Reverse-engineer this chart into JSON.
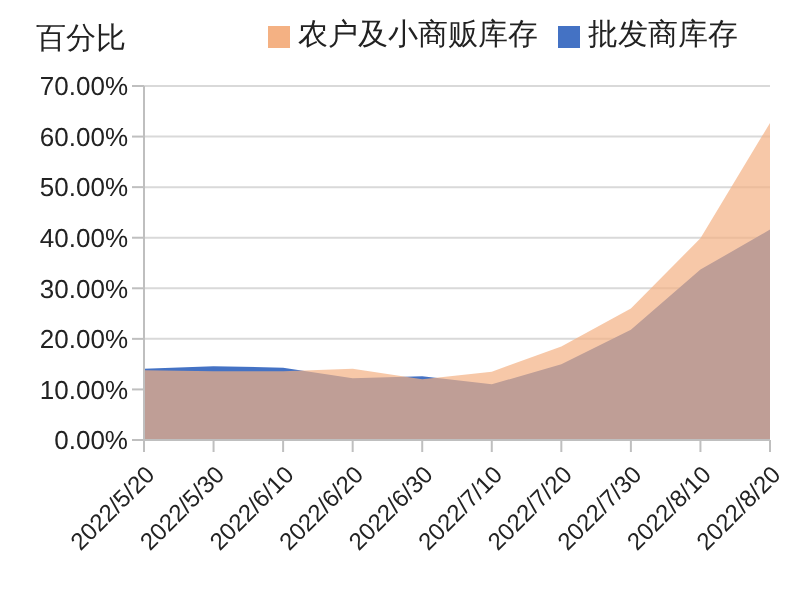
{
  "chart_data": {
    "type": "area",
    "ylabel": "百分比",
    "categories": [
      "2022/5/20",
      "2022/5/30",
      "2022/6/10",
      "2022/6/20",
      "2022/6/30",
      "2022/7/10",
      "2022/7/20",
      "2022/7/30",
      "2022/8/10",
      "2022/8/20"
    ],
    "series": [
      {
        "name": "批发商库存",
        "color": "#4472c4",
        "values": [
          14.1,
          14.6,
          14.3,
          12.2,
          12.6,
          11.0,
          15.0,
          21.8,
          33.7,
          41.6
        ]
      },
      {
        "name": "农户及小商贩库存",
        "color": "#f4b183",
        "values": [
          13.8,
          13.6,
          13.6,
          14.1,
          12.0,
          13.5,
          18.5,
          26.0,
          39.9,
          62.7
        ]
      }
    ],
    "ylim": [
      0,
      70
    ],
    "yticks": [
      {
        "value": 0,
        "label": "0.00%"
      },
      {
        "value": 10,
        "label": "10.00%"
      },
      {
        "value": 20,
        "label": "20.00%"
      },
      {
        "value": 30,
        "label": "30.00%"
      },
      {
        "value": 40,
        "label": "40.00%"
      },
      {
        "value": 50,
        "label": "50.00%"
      },
      {
        "value": 60,
        "label": "60.00%"
      },
      {
        "value": 70,
        "label": "70.00%"
      }
    ],
    "grid": "y",
    "legend": "top"
  }
}
